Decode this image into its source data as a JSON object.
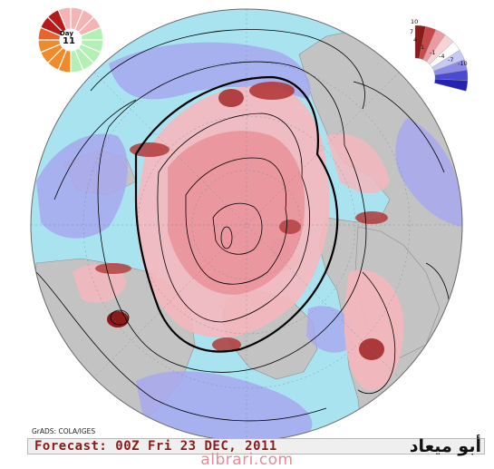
{
  "map": {
    "credit": "GrADS: COLA/IGES",
    "forecast_text": "Forecast: 00Z Fri 23 DEC, 2011",
    "arabic_title": "أبو ميعاد",
    "watermark": "albrari.com"
  },
  "day_wheel": {
    "label": "Day",
    "number": "11"
  },
  "legend": {
    "labels": [
      "10",
      "7",
      "4",
      "1",
      "-1",
      "-4",
      "-7",
      "-10"
    ]
  },
  "colors": {
    "ocean": "#a9e3f0",
    "land": "#c3c3c3",
    "positive_strong": "#8b1a1a",
    "positive_medium": "#d9707a",
    "positive_light": "#f5b7bd",
    "negative_light": "#a8a8f0",
    "negative_medium": "#6b6be0",
    "negative_strong": "#2323b0",
    "contour": "#000000"
  }
}
